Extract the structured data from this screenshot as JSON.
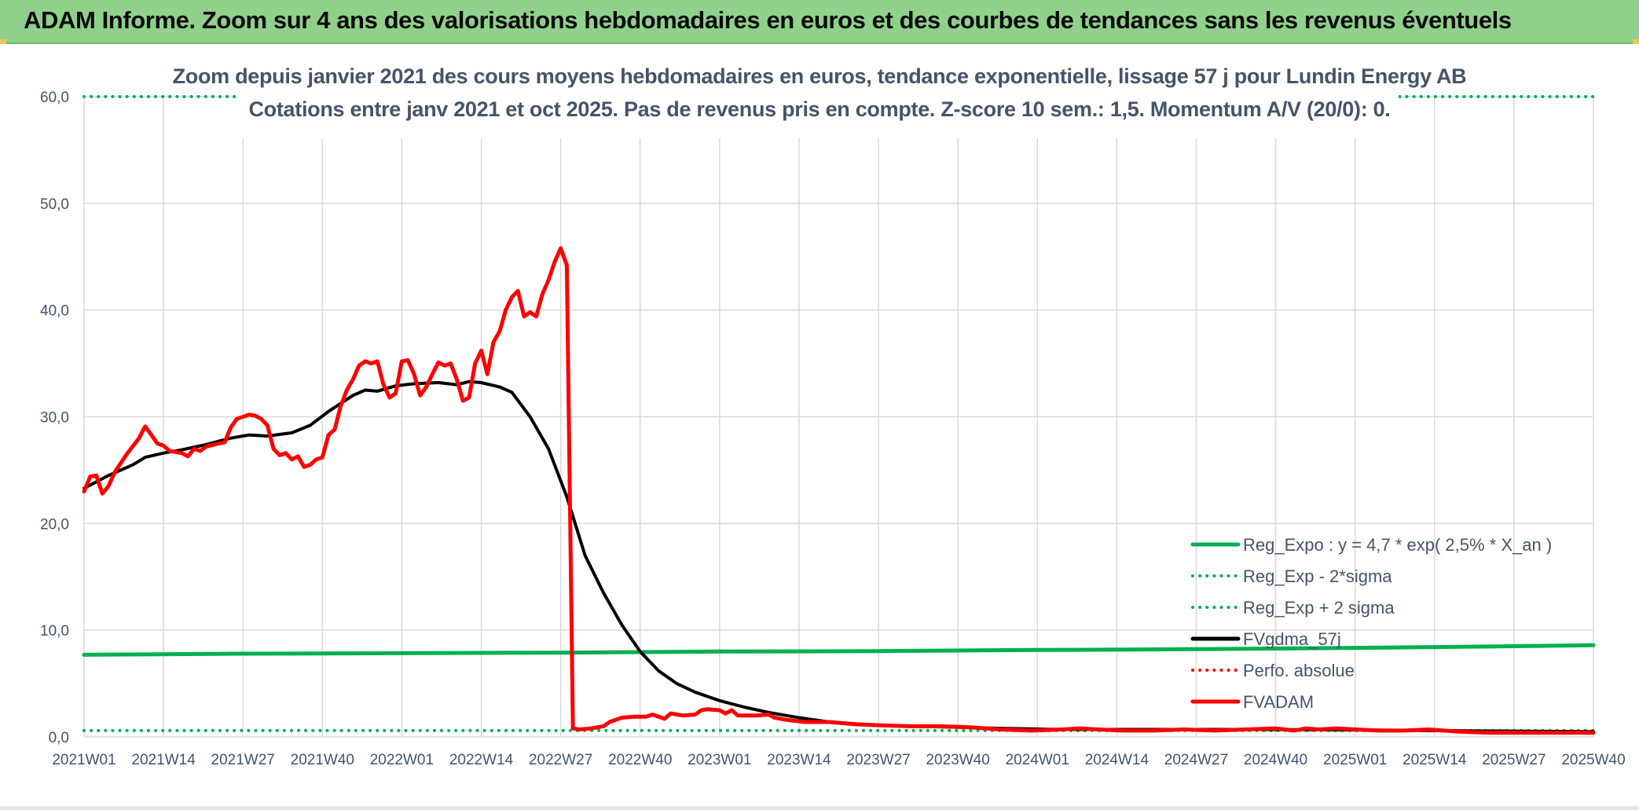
{
  "banner": {
    "title": "ADAM Informe. Zoom sur 4 ans des valorisations hebdomadaires en euros et des courbes de tendances sans les revenus éventuels"
  },
  "chart": {
    "subtitle_line1": "Zoom depuis janvier 2021 des cours moyens hebdomadaires en euros, tendance exponentielle, lissage 57 j pour Lundin Energy AB",
    "subtitle_line2": "Cotations entre janv 2021 et oct 2025. Pas de revenus pris en compte. Z-score 10 sem.: 1,5. Momentum A/V (20/0): 0."
  },
  "colors": {
    "banner": "#8fd18a",
    "reg_expo": "#00b050",
    "fvgdma": "#000000",
    "fvadam": "#ff0000",
    "grid": "#d9d9d9",
    "text": "#44546a"
  },
  "chart_data": {
    "type": "line",
    "title": "Zoom depuis janvier 2021 des cours moyens hebdomadaires en euros, tendance exponentielle, lissage 57 j pour Lundin Energy AB",
    "subtitle": "Cotations entre janv 2021 et oct 2025. Pas de revenus pris en compte. Z-score 10 sem.: 1,5. Momentum A/V (20/0): 0.",
    "x_ticks": [
      "2021W01",
      "2021W14",
      "2021W27",
      "2021W40",
      "2022W01",
      "2022W14",
      "2022W27",
      "2022W40",
      "2023W01",
      "2023W14",
      "2023W27",
      "2023W40",
      "2024W01",
      "2024W14",
      "2024W27",
      "2024W40",
      "2025W01",
      "2025W14",
      "2025W27",
      "2025W40"
    ],
    "y_ticks": [
      "0,0",
      "10,0",
      "20,0",
      "30,0",
      "40,0",
      "50,0",
      "60,0"
    ],
    "ylim": [
      0,
      60
    ],
    "grid": true,
    "legend_position": "bottom-right",
    "series": [
      {
        "name": "Reg_Expo : y = 4,7 * exp( 2,5% *  X_an )",
        "style": "solid",
        "color": "#00b050",
        "points": [
          [
            0,
            7.7
          ],
          [
            13,
            7.75
          ],
          [
            26,
            7.8
          ],
          [
            39,
            7.82
          ],
          [
            52,
            7.85
          ],
          [
            65,
            7.88
          ],
          [
            78,
            7.9
          ],
          [
            91,
            7.95
          ],
          [
            104,
            8.0
          ],
          [
            117,
            8.02
          ],
          [
            130,
            8.05
          ],
          [
            143,
            8.1
          ],
          [
            156,
            8.15
          ],
          [
            169,
            8.18
          ],
          [
            182,
            8.22
          ],
          [
            195,
            8.28
          ],
          [
            208,
            8.35
          ],
          [
            221,
            8.42
          ],
          [
            234,
            8.5
          ],
          [
            247,
            8.6
          ]
        ]
      },
      {
        "name": "Reg_Exp - 2*sigma",
        "style": "dotted",
        "color": "#00b050",
        "points": [
          [
            0,
            0.6
          ],
          [
            247,
            0.6
          ]
        ]
      },
      {
        "name": "Reg_Exp + 2 sigma",
        "style": "dotted",
        "color": "#00b050",
        "points": [
          [
            0,
            60.0
          ],
          [
            247,
            60.0
          ]
        ]
      },
      {
        "name": "FVgdma_57j",
        "style": "solid",
        "color": "#000000",
        "points": [
          [
            0,
            23.3
          ],
          [
            4,
            24.5
          ],
          [
            8,
            25.5
          ],
          [
            10,
            26.2
          ],
          [
            13,
            26.6
          ],
          [
            16,
            26.9
          ],
          [
            20,
            27.4
          ],
          [
            24,
            28.0
          ],
          [
            27,
            28.3
          ],
          [
            30,
            28.2
          ],
          [
            34,
            28.5
          ],
          [
            37,
            29.2
          ],
          [
            40,
            30.5
          ],
          [
            44,
            32.0
          ],
          [
            46,
            32.5
          ],
          [
            48,
            32.4
          ],
          [
            51,
            32.9
          ],
          [
            54,
            33.1
          ],
          [
            58,
            33.2
          ],
          [
            61,
            33.0
          ],
          [
            63,
            33.3
          ],
          [
            65,
            33.2
          ],
          [
            68,
            32.8
          ],
          [
            70,
            32.3
          ],
          [
            73,
            30.0
          ],
          [
            76,
            27.0
          ],
          [
            79,
            22.5
          ],
          [
            82,
            17.0
          ],
          [
            85,
            13.5
          ],
          [
            88,
            10.5
          ],
          [
            91,
            8.0
          ],
          [
            94,
            6.2
          ],
          [
            97,
            5.0
          ],
          [
            100,
            4.2
          ],
          [
            104,
            3.4
          ],
          [
            108,
            2.8
          ],
          [
            112,
            2.3
          ],
          [
            117,
            1.8
          ],
          [
            122,
            1.4
          ],
          [
            127,
            1.2
          ],
          [
            134,
            1.0
          ],
          [
            140,
            0.95
          ],
          [
            150,
            0.8
          ],
          [
            160,
            0.7
          ],
          [
            175,
            0.7
          ],
          [
            190,
            0.7
          ],
          [
            210,
            0.65
          ],
          [
            230,
            0.55
          ],
          [
            247,
            0.5
          ]
        ]
      },
      {
        "name": "Perfo. absolue",
        "style": "dotted",
        "color": "#ff0000",
        "points": []
      },
      {
        "name": "FVADAM",
        "style": "solid",
        "color": "#ff0000",
        "points": [
          [
            0,
            23.0
          ],
          [
            1,
            24.4
          ],
          [
            2,
            24.5
          ],
          [
            3,
            22.8
          ],
          [
            4,
            23.5
          ],
          [
            5,
            24.8
          ],
          [
            7,
            26.5
          ],
          [
            9,
            28.0
          ],
          [
            10,
            29.1
          ],
          [
            11,
            28.3
          ],
          [
            12,
            27.5
          ],
          [
            13,
            27.3
          ],
          [
            14,
            26.8
          ],
          [
            16,
            26.6
          ],
          [
            17,
            26.3
          ],
          [
            18,
            27.0
          ],
          [
            19,
            26.8
          ],
          [
            20,
            27.2
          ],
          [
            22,
            27.5
          ],
          [
            23,
            27.6
          ],
          [
            24,
            29.0
          ],
          [
            25,
            29.8
          ],
          [
            27,
            30.2
          ],
          [
            28,
            30.1
          ],
          [
            29,
            29.8
          ],
          [
            30,
            29.2
          ],
          [
            31,
            27.0
          ],
          [
            32,
            26.4
          ],
          [
            33,
            26.6
          ],
          [
            34,
            26.0
          ],
          [
            35,
            26.3
          ],
          [
            36,
            25.3
          ],
          [
            37,
            25.5
          ],
          [
            38,
            26.0
          ],
          [
            39,
            26.2
          ],
          [
            40,
            28.3
          ],
          [
            41,
            28.8
          ],
          [
            42,
            31.0
          ],
          [
            43,
            32.5
          ],
          [
            44,
            33.5
          ],
          [
            45,
            34.8
          ],
          [
            46,
            35.2
          ],
          [
            47,
            35.0
          ],
          [
            48,
            35.2
          ],
          [
            49,
            33.0
          ],
          [
            50,
            31.8
          ],
          [
            51,
            32.2
          ],
          [
            52,
            35.2
          ],
          [
            53,
            35.3
          ],
          [
            54,
            34.0
          ],
          [
            55,
            32.0
          ],
          [
            56,
            32.8
          ],
          [
            57,
            34.0
          ],
          [
            58,
            35.1
          ],
          [
            59,
            34.8
          ],
          [
            60,
            35.0
          ],
          [
            61,
            33.5
          ],
          [
            62,
            31.5
          ],
          [
            63,
            31.8
          ],
          [
            64,
            35.0
          ],
          [
            65,
            36.2
          ],
          [
            66,
            34.0
          ],
          [
            67,
            37.0
          ],
          [
            68,
            38.0
          ],
          [
            69,
            40.0
          ],
          [
            70,
            41.2
          ],
          [
            71,
            41.8
          ],
          [
            72,
            39.4
          ],
          [
            73,
            39.8
          ],
          [
            74,
            39.4
          ],
          [
            75,
            41.5
          ],
          [
            76,
            42.8
          ],
          [
            77,
            44.5
          ],
          [
            78,
            45.8
          ],
          [
            79,
            44.2
          ],
          [
            80,
            0.8
          ],
          [
            81,
            0.7
          ],
          [
            83,
            0.8
          ],
          [
            85,
            1.0
          ],
          [
            86,
            1.4
          ],
          [
            88,
            1.8
          ],
          [
            90,
            1.9
          ],
          [
            92,
            1.9
          ],
          [
            93,
            2.1
          ],
          [
            95,
            1.7
          ],
          [
            96,
            2.2
          ],
          [
            98,
            2.0
          ],
          [
            100,
            2.1
          ],
          [
            101,
            2.5
          ],
          [
            102,
            2.6
          ],
          [
            104,
            2.5
          ],
          [
            105,
            2.2
          ],
          [
            106,
            2.5
          ],
          [
            107,
            2.0
          ],
          [
            110,
            2.0
          ],
          [
            112,
            2.1
          ],
          [
            113,
            1.8
          ],
          [
            115,
            1.6
          ],
          [
            118,
            1.4
          ],
          [
            122,
            1.4
          ],
          [
            126,
            1.2
          ],
          [
            130,
            1.1
          ],
          [
            135,
            1.0
          ],
          [
            140,
            1.0
          ],
          [
            145,
            0.9
          ],
          [
            150,
            0.7
          ],
          [
            155,
            0.6
          ],
          [
            160,
            0.7
          ],
          [
            163,
            0.8
          ],
          [
            166,
            0.7
          ],
          [
            170,
            0.6
          ],
          [
            175,
            0.6
          ],
          [
            180,
            0.7
          ],
          [
            185,
            0.6
          ],
          [
            190,
            0.7
          ],
          [
            195,
            0.8
          ],
          [
            198,
            0.6
          ],
          [
            200,
            0.8
          ],
          [
            202,
            0.7
          ],
          [
            205,
            0.8
          ],
          [
            208,
            0.7
          ],
          [
            212,
            0.6
          ],
          [
            216,
            0.6
          ],
          [
            220,
            0.7
          ],
          [
            225,
            0.5
          ],
          [
            230,
            0.4
          ],
          [
            235,
            0.4
          ],
          [
            240,
            0.4
          ],
          [
            247,
            0.4
          ]
        ]
      }
    ]
  }
}
